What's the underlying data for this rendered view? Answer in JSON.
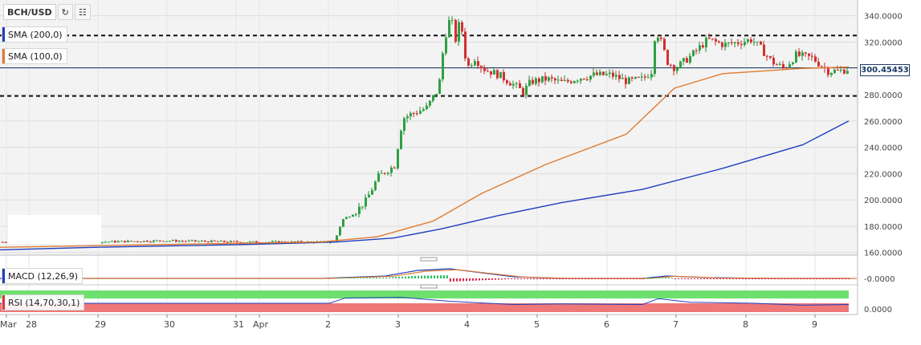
{
  "toolbar": {
    "symbol": "BCH/USD",
    "refresh_icon": "refresh-icon",
    "calendar_icon": "calendar-icon"
  },
  "indicators": {
    "sma200": {
      "label": "SMA (200,0)",
      "color": "#1f3fbf"
    },
    "sma100": {
      "label": "SMA (100,0)",
      "color": "#e07a2f"
    },
    "macd": {
      "label": "MACD (12,26,9)",
      "value": "-0.0000"
    },
    "rsi": {
      "label": "RSI (14,70,30,1)",
      "value": "0.0000"
    }
  },
  "current_price": "300.45453",
  "chart_data": {
    "type": "candlestick",
    "title": "",
    "y_ticks": [
      "340.0000",
      "320.0000",
      "300.0000",
      "280.0000",
      "260.0000",
      "240.0000",
      "220.0000",
      "200.0000",
      "180.0000",
      "160.0000"
    ],
    "ylim": [
      158,
      352
    ],
    "x_ticks": [
      "Mar",
      "28",
      "29",
      "30",
      "31",
      "Apr",
      "2",
      "3",
      "4",
      "5",
      "6",
      "7",
      "8",
      "9"
    ],
    "horizontal_levels": [
      325,
      279
    ],
    "current_price_line": 300.45,
    "series": [
      {
        "name": "SMA (200,0)",
        "color": "#1f3fbf",
        "values": [
          [
            0,
            162
          ],
          [
            120,
            164
          ],
          [
            300,
            166
          ],
          [
            420,
            168
          ],
          [
            490,
            171
          ],
          [
            550,
            178
          ],
          [
            620,
            188
          ],
          [
            700,
            198
          ],
          [
            800,
            208
          ],
          [
            900,
            224
          ],
          [
            1000,
            242
          ],
          [
            1057,
            260
          ]
        ]
      },
      {
        "name": "SMA (100,0)",
        "color": "#e07a2f",
        "values": [
          [
            0,
            164
          ],
          [
            200,
            166
          ],
          [
            400,
            168
          ],
          [
            470,
            172
          ],
          [
            540,
            184
          ],
          [
            600,
            205
          ],
          [
            680,
            227
          ],
          [
            780,
            250
          ],
          [
            840,
            285
          ],
          [
            900,
            296
          ],
          [
            1000,
            300
          ],
          [
            1057,
            301
          ]
        ]
      }
    ],
    "price_path": [
      [
        0,
        168
      ],
      [
        120,
        168
      ],
      [
        200,
        169
      ],
      [
        300,
        168
      ],
      [
        415,
        168
      ],
      [
        425,
        185
      ],
      [
        440,
        190
      ],
      [
        455,
        200
      ],
      [
        470,
        218
      ],
      [
        490,
        226
      ],
      [
        500,
        262
      ],
      [
        510,
        265
      ],
      [
        530,
        270
      ],
      [
        545,
        285
      ],
      [
        552,
        322
      ],
      [
        560,
        340
      ],
      [
        566,
        322
      ],
      [
        572,
        338
      ],
      [
        580,
        300
      ],
      [
        590,
        308
      ],
      [
        600,
        300
      ],
      [
        620,
        295
      ],
      [
        640,
        287
      ],
      [
        650,
        282
      ],
      [
        660,
        290
      ],
      [
        680,
        292
      ],
      [
        700,
        289
      ],
      [
        720,
        293
      ],
      [
        740,
        295
      ],
      [
        760,
        295
      ],
      [
        780,
        290
      ],
      [
        800,
        292
      ],
      [
        810,
        298
      ],
      [
        815,
        330
      ],
      [
        822,
        320
      ],
      [
        830,
        305
      ],
      [
        840,
        300
      ],
      [
        860,
        310
      ],
      [
        880,
        322
      ],
      [
        900,
        318
      ],
      [
        920,
        320
      ],
      [
        935,
        322
      ],
      [
        945,
        316
      ],
      [
        960,
        305
      ],
      [
        975,
        300
      ],
      [
        990,
        310
      ],
      [
        1010,
        308
      ],
      [
        1030,
        298
      ],
      [
        1045,
        298
      ],
      [
        1057,
        300
      ]
    ],
    "macd_signal": [
      [
        0,
        0
      ],
      [
        400,
        0
      ],
      [
        480,
        3
      ],
      [
        520,
        10
      ],
      [
        560,
        12
      ],
      [
        600,
        7
      ],
      [
        640,
        2
      ],
      [
        700,
        0
      ],
      [
        800,
        0
      ],
      [
        830,
        3
      ],
      [
        880,
        1
      ],
      [
        960,
        0
      ],
      [
        1057,
        0
      ]
    ],
    "rsi": [
      [
        0,
        52
      ],
      [
        410,
        52
      ],
      [
        430,
        68
      ],
      [
        500,
        70
      ],
      [
        560,
        58
      ],
      [
        640,
        48
      ],
      [
        700,
        50
      ],
      [
        800,
        48
      ],
      [
        820,
        66
      ],
      [
        860,
        55
      ],
      [
        940,
        52
      ],
      [
        1000,
        46
      ],
      [
        1057,
        48
      ]
    ]
  }
}
